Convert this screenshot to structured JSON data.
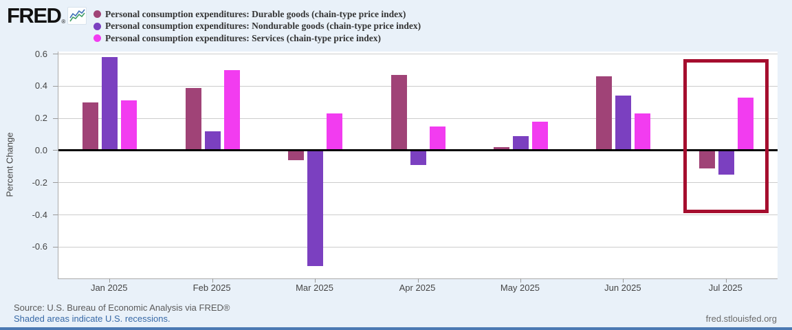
{
  "logo": {
    "text": "FRED",
    "reg": "®",
    "icon": "line-chart-icon"
  },
  "chart_data": {
    "type": "bar",
    "title": "",
    "ylabel": "Percent Change",
    "categories": [
      "Jan 2025",
      "Feb 2025",
      "Mar 2025",
      "Apr 2025",
      "May 2025",
      "Jun 2025",
      "Jul 2025"
    ],
    "series": [
      {
        "name": "Personal consumption expenditures: Durable goods (chain-type price index)",
        "color": "#a04377",
        "values": [
          0.3,
          0.39,
          -0.06,
          0.47,
          0.02,
          0.46,
          -0.11
        ]
      },
      {
        "name": "Personal consumption expenditures: Nondurable goods (chain-type price index)",
        "color": "#7b40c0",
        "values": [
          0.58,
          0.12,
          -0.72,
          -0.09,
          0.09,
          0.34,
          -0.15
        ]
      },
      {
        "name": "Personal consumption expenditures: Services (chain-type price index)",
        "color": "#f23cf0",
        "values": [
          0.31,
          0.5,
          0.23,
          0.15,
          0.18,
          0.23,
          0.33
        ]
      }
    ],
    "yticks": [
      0.6,
      0.4,
      0.2,
      0.0,
      -0.2,
      -0.4,
      -0.6,
      -0.8
    ],
    "ylim": [
      -0.8,
      0.615
    ],
    "grid": true,
    "legend_position": "top",
    "zero_line": true,
    "highlight": {
      "category": "Jul 2025",
      "from": 0.57,
      "to": -0.39,
      "color": "#a50e2e"
    }
  },
  "footer": {
    "source": "Source: U.S. Bureau of Economic Analysis via FRED®",
    "recession_note": "Shaded areas indicate U.S. recessions.",
    "site": "fred.stlouisfed.org"
  }
}
